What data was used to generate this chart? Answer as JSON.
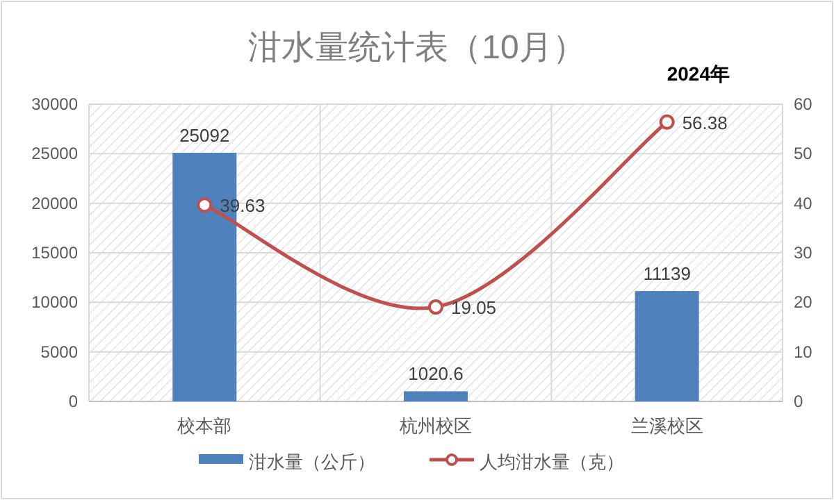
{
  "chart_data": {
    "type": "bar",
    "title": "泔水量统计表（10月）",
    "subtitle": "2024年",
    "categories": [
      "校本部",
      "杭州校区",
      "兰溪校区"
    ],
    "series": [
      {
        "name": "泔水量（公斤）",
        "color": "#4f81bd",
        "values": [
          25092,
          1020.6,
          11139
        ]
      },
      {
        "name": "人均泔水量（克）",
        "type": "line",
        "color": "#c0504d",
        "values": [
          39.63,
          19.05,
          56.38
        ],
        "axis": "y2",
        "marker": "circle"
      }
    ],
    "ylim": [
      0,
      30000
    ],
    "yticks": [
      0,
      5000,
      10000,
      15000,
      20000,
      25000,
      30000
    ],
    "y2lim": [
      0,
      60
    ],
    "y2ticks": [
      0,
      10,
      20,
      30,
      40,
      50,
      60
    ],
    "grid": true,
    "data_labels": true,
    "legend": "bottom"
  }
}
